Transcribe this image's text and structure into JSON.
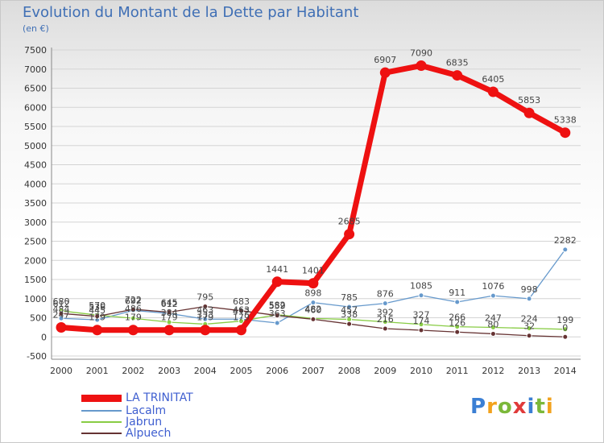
{
  "title": "Evolution du Montant de la Dette par Habitant",
  "unit": "(en €)",
  "logo": {
    "text": "Proxiti"
  },
  "chart_data": {
    "type": "line",
    "categories": [
      "2000",
      "2001",
      "2002",
      "2003",
      "2004",
      "2005",
      "2006",
      "2007",
      "2008",
      "2009",
      "2010",
      "2011",
      "2012",
      "2013",
      "2014"
    ],
    "ylim": [
      -500,
      7500
    ],
    "yticks": [
      -500,
      0,
      500,
      1000,
      1500,
      2000,
      2500,
      3000,
      3500,
      4000,
      4500,
      5000,
      5500,
      6000,
      6500,
      7000,
      7500
    ],
    "grid": true,
    "legend_position": "bottom-left",
    "series": [
      {
        "name": "LA TRINITAT",
        "color": "#ee1111",
        "values": [
          247,
          179,
          179,
          179,
          179,
          179,
          1441,
          1401,
          2685,
          6907,
          7090,
          6835,
          6405,
          5853,
          5338
        ]
      },
      {
        "name": "Lacalm",
        "color": "#6699cc",
        "values": [
          484,
          445,
          692,
          612,
          463,
          463,
          363,
          898,
          785,
          876,
          1085,
          911,
          1076,
          998,
          2282
        ]
      },
      {
        "name": "Jabrun",
        "color": "#88cc44",
        "values": [
          680,
          570,
          486,
          384,
          333,
          412,
          582,
          482,
          457,
          392,
          327,
          266,
          247,
          224,
          199
        ]
      },
      {
        "name": "Alpuech",
        "color": "#663333",
        "values": [
          612,
          536,
          722,
          645,
          795,
          683,
          559,
          460,
          338,
          216,
          174,
          126,
          80,
          32,
          0
        ]
      }
    ]
  }
}
